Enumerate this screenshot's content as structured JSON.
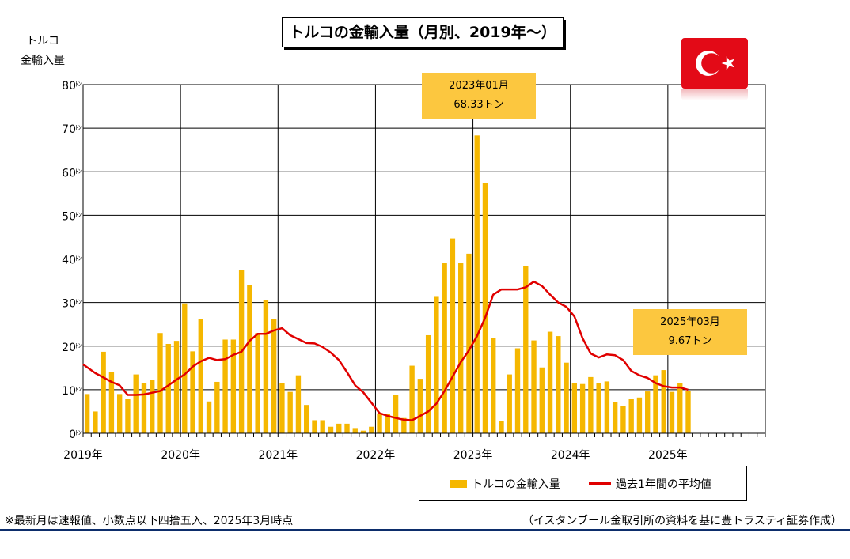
{
  "title": "トルコの金輸入量（月別、2019年～）",
  "ylabel_line1": "トルコ",
  "ylabel_line2": "金輸入量",
  "callouts": {
    "peak": {
      "line1": "2023年01月",
      "line2": "68.33トン"
    },
    "latest": {
      "line1": "2025年03月",
      "line2": "9.67トン"
    }
  },
  "legend": {
    "bar": "トルコの金輸入量",
    "line": "過去1年間の平均値"
  },
  "footnote": "※最新月は速報値、小数点以下四捨五入、2025年3月時点",
  "source": "（イスタンブール金取引所の資料を基に豊トラスティ証券作成）",
  "flag": "turkey-flag-icon",
  "colors": {
    "bar": "#f5b700",
    "line": "#e00000",
    "callout": "#fcc73f",
    "rule": "#0c2d6b"
  },
  "chart_data": {
    "type": "bar",
    "unit": "トン",
    "ylim": [
      0,
      80
    ],
    "yticks": [
      0,
      10,
      20,
      30,
      40,
      50,
      60,
      70,
      80
    ],
    "xticks": [
      "2019年",
      "2020年",
      "2021年",
      "2022年",
      "2023年",
      "2024年",
      "2025年"
    ],
    "grid": true,
    "legend_position": "bottom-right",
    "start": "2019-01",
    "months": 84,
    "series": [
      {
        "name": "トルコの金輸入量",
        "type": "bar",
        "values": [
          9,
          5,
          18.7,
          14,
          9,
          7.8,
          13.5,
          11.5,
          12.2,
          23,
          20.5,
          21.2,
          29.8,
          18.8,
          26.3,
          7.3,
          11.8,
          21.5,
          21.5,
          37.5,
          34,
          23,
          30.5,
          26.2,
          11.5,
          9.5,
          13.3,
          6.5,
          3,
          3,
          1.5,
          2.2,
          2.2,
          1.2,
          0.6,
          1.5,
          4.5,
          4.5,
          8.8,
          3.5,
          15.5,
          12.5,
          22.5,
          31.3,
          39,
          44.7,
          39,
          41.2,
          68.33,
          57.5,
          21.8,
          2.8,
          13.5,
          19.5,
          38.3,
          21.3,
          15.1,
          23.3,
          22.3,
          16.2,
          11.5,
          11.3,
          12.9,
          11.5,
          11.9,
          7.2,
          6.2,
          7.8,
          8.2,
          9.6,
          13.3,
          14.5,
          9.5,
          11.5,
          9.67
        ]
      },
      {
        "name": "過去1年間の平均値",
        "type": "line",
        "values": [
          15.8,
          13.8,
          12.8,
          11.8,
          11,
          8.8,
          8.8,
          8.9,
          9.3,
          9.7,
          11,
          12.3,
          13.5,
          15.3,
          16.5,
          17.3,
          16.8,
          17,
          18,
          18.7,
          21.2,
          22.8,
          22.8,
          23.6,
          24.1,
          22.5,
          21.6,
          20.7,
          20.6,
          19.8,
          18.5,
          16.8,
          14,
          11,
          9.4,
          7,
          4.6,
          4,
          3.5,
          3.1,
          3,
          4,
          5,
          6.8,
          9.7,
          13,
          16.3,
          19,
          22.3,
          26.5,
          31.8,
          33,
          33,
          33,
          33.5,
          34.8,
          33.8,
          31.8,
          30,
          29,
          26.8,
          21.8,
          18.3,
          17.4,
          18.1,
          17.9,
          16.8,
          14.3,
          13.3,
          12.7,
          11.5,
          10.8,
          10.5,
          10.5,
          10
        ]
      }
    ]
  }
}
